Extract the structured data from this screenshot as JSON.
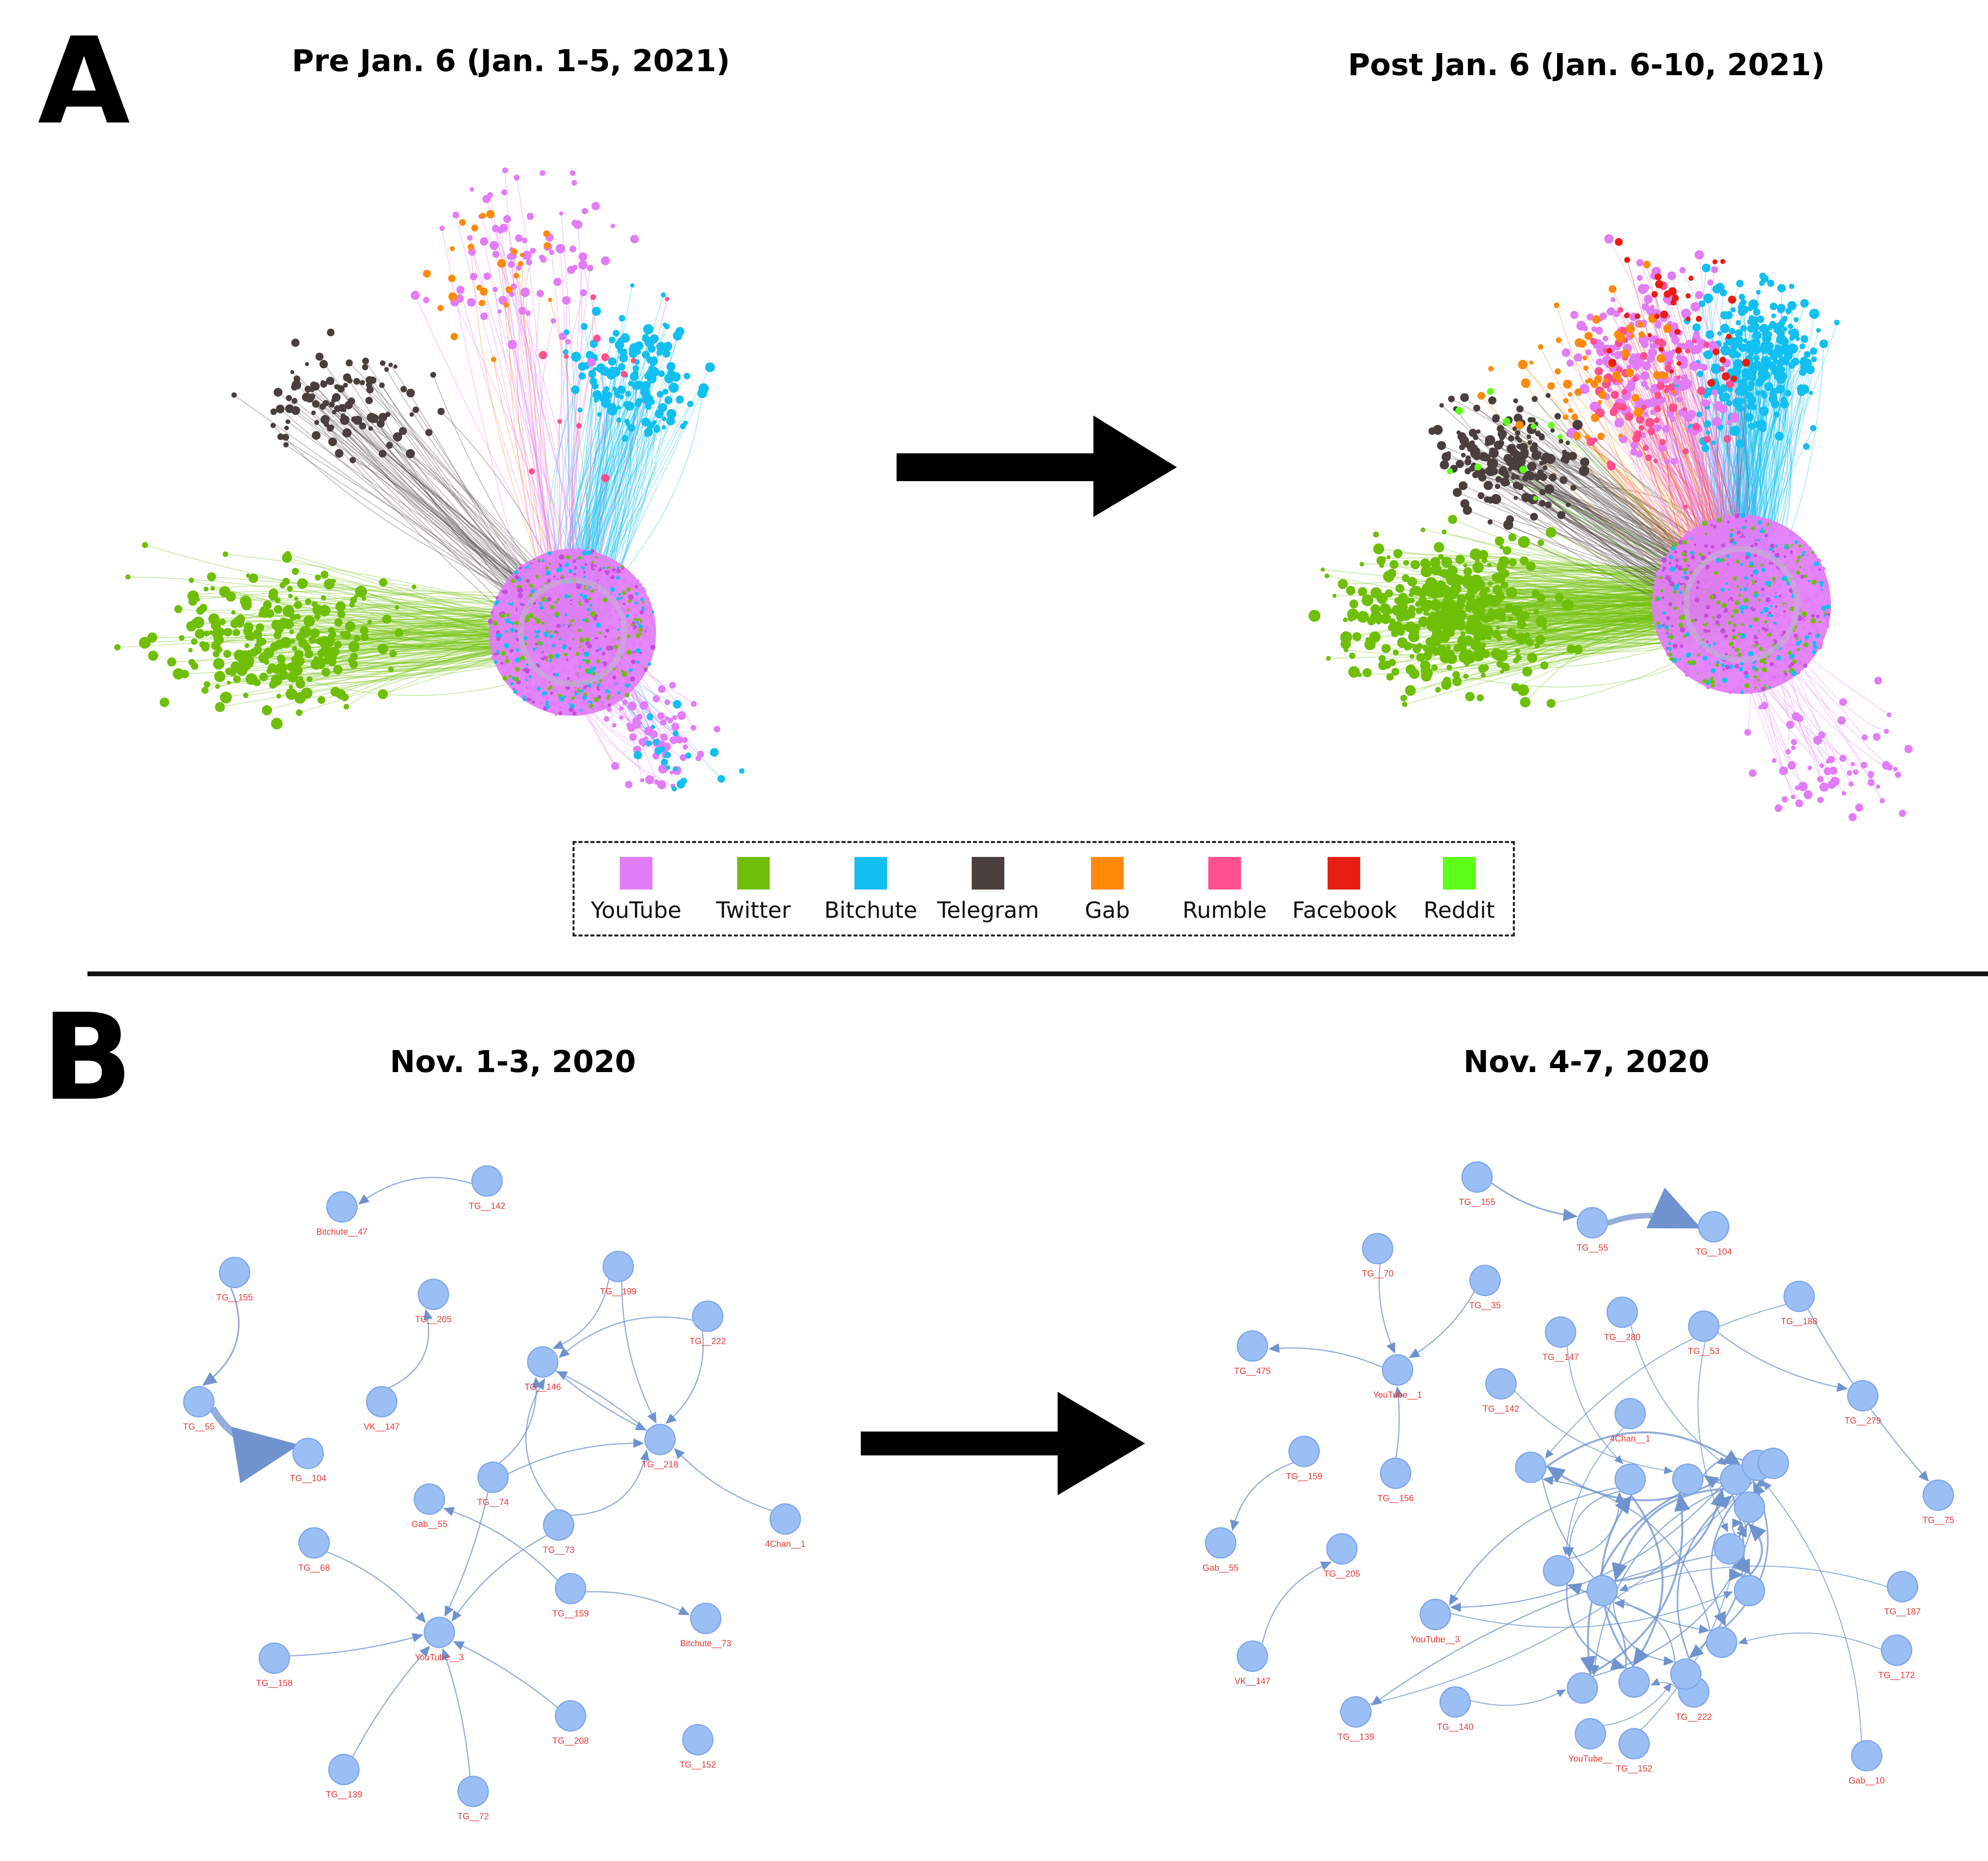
{
  "panel_a": {
    "letter": "A",
    "left_title": "Pre Jan. 6 (Jan. 1-5, 2021)",
    "right_title": "Post Jan. 6 (Jan. 6-10, 2021)",
    "legend": [
      {
        "label": "YouTube",
        "color": "#e27cf7"
      },
      {
        "label": "Twitter",
        "color": "#6fbf08"
      },
      {
        "label": "Bitchute",
        "color": "#12bff0"
      },
      {
        "label": "Telegram",
        "color": "#4b3f3d"
      },
      {
        "label": "Gab",
        "color": "#ff8a0a"
      },
      {
        "label": "Rumble",
        "color": "#ff4f8e"
      },
      {
        "label": "Facebook",
        "color": "#e81e12"
      },
      {
        "label": "Reddit",
        "color": "#5cff18"
      }
    ]
  },
  "panel_b": {
    "letter": "B",
    "left_title": "Nov. 1-3, 2020",
    "right_title": "Nov. 4-7, 2020",
    "node_color": "#9abff5",
    "edge_color": "#6f93cf",
    "left_nodes": [
      {
        "id": "TG__142"
      },
      {
        "id": "Bitchute__47"
      },
      {
        "id": "TG__155"
      },
      {
        "id": "TG__205"
      },
      {
        "id": "TG__199"
      },
      {
        "id": "TG__222"
      },
      {
        "id": "TG__146"
      },
      {
        "id": "VK__147"
      },
      {
        "id": "TG__55"
      },
      {
        "id": "TG__104"
      },
      {
        "id": "TG__218"
      },
      {
        "id": "TG__74"
      },
      {
        "id": "Gab__55"
      },
      {
        "id": "TG__73"
      },
      {
        "id": "4Chan__1"
      },
      {
        "id": "TG__68"
      },
      {
        "id": "TG__159"
      },
      {
        "id": "Bitchute__73"
      },
      {
        "id": "YouTube__3"
      },
      {
        "id": "TG__158"
      },
      {
        "id": "TG__208"
      },
      {
        "id": "TG__152"
      },
      {
        "id": "TG__139"
      },
      {
        "id": "TG__72"
      }
    ],
    "right_nodes": [
      {
        "id": "TG__155"
      },
      {
        "id": "TG__55"
      },
      {
        "id": "TG__104"
      },
      {
        "id": "TG__70"
      },
      {
        "id": "TG__35"
      },
      {
        "id": "TG__475"
      },
      {
        "id": "YouTube__1"
      },
      {
        "id": "TG__147"
      },
      {
        "id": "TG__280"
      },
      {
        "id": "TG__53"
      },
      {
        "id": "TG__188"
      },
      {
        "id": "TG__142"
      },
      {
        "id": "TG__279"
      },
      {
        "id": "TG__159"
      },
      {
        "id": "TG__156"
      },
      {
        "id": "4Chan__1"
      },
      {
        "id": "TG__75"
      },
      {
        "id": "Gab__55"
      },
      {
        "id": "TG__205"
      },
      {
        "id": "TG__187"
      },
      {
        "id": "YouTube__3"
      },
      {
        "id": "TG__172"
      },
      {
        "id": "VK__147"
      },
      {
        "id": "TG__139"
      },
      {
        "id": "TG__140"
      },
      {
        "id": "TG__222"
      },
      {
        "id": "YouTube__"
      },
      {
        "id": "TG__152"
      },
      {
        "id": "Gab__10"
      }
    ]
  }
}
